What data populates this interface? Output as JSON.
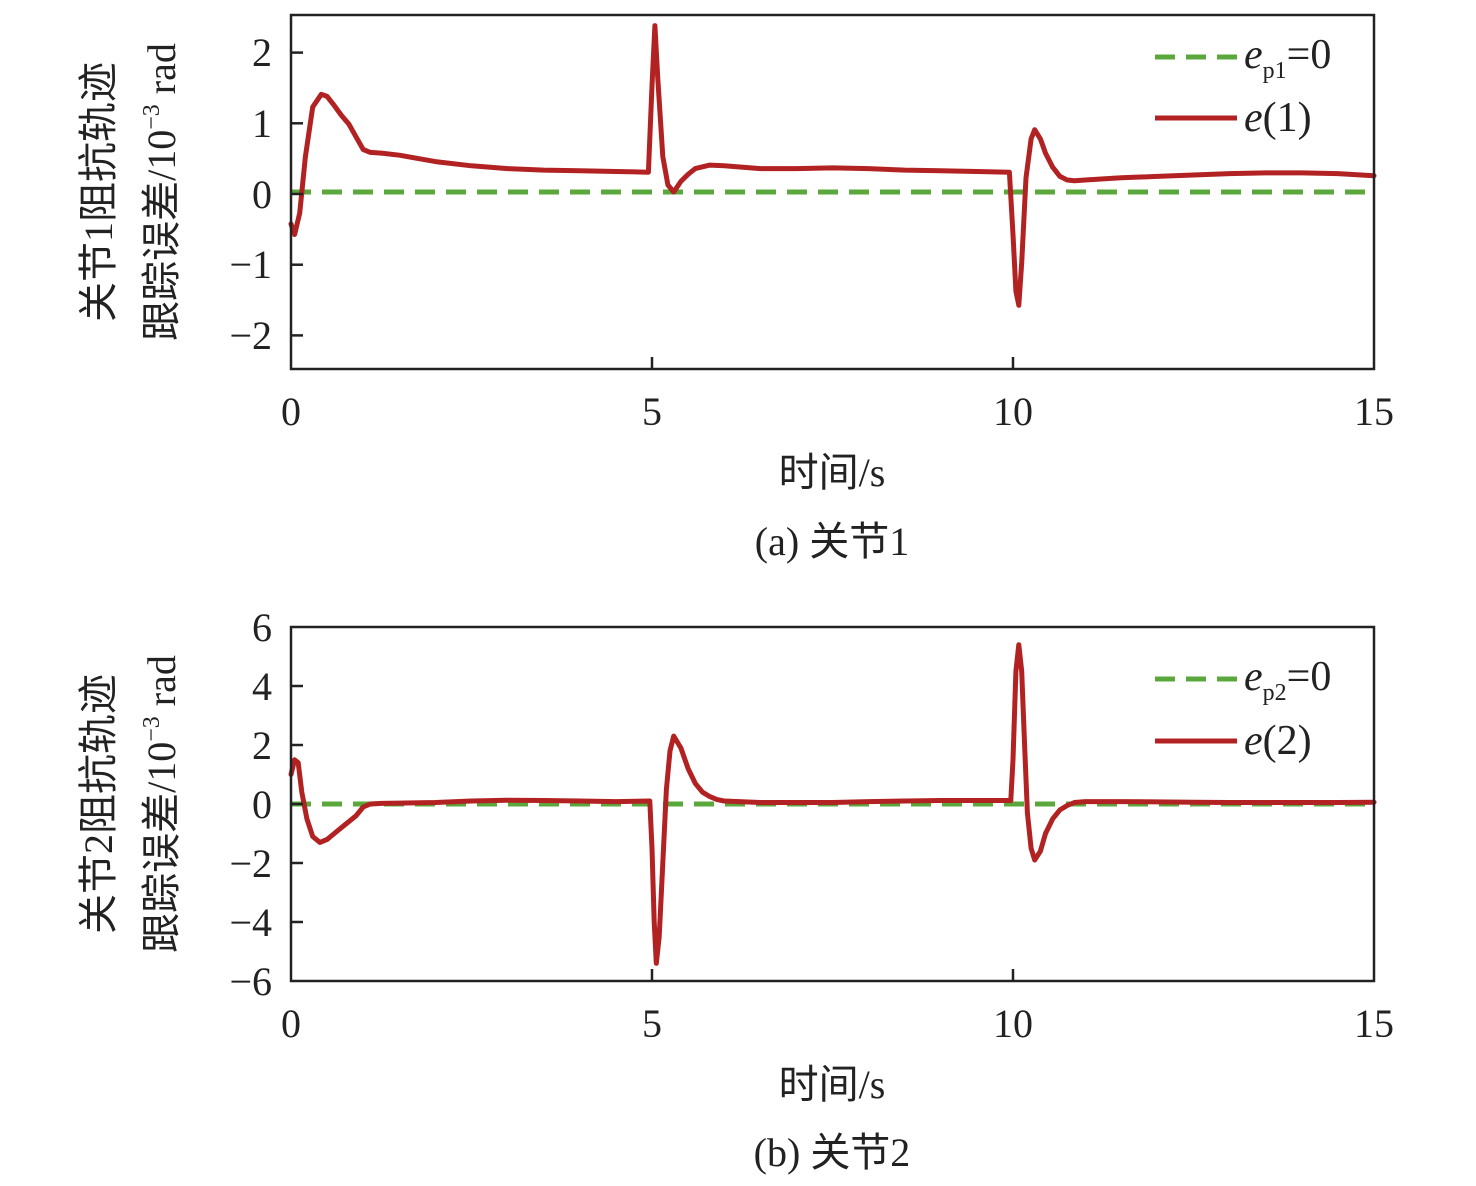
{
  "charts": [
    {
      "caption": "(a) 关节1",
      "xlabel": "时间/s",
      "ylabel_line1": "关节1阻抗轨迹",
      "ylabel_line2": "跟踪误差/10",
      "ylabel_exp": "−3",
      "ylabel_unit": " rad",
      "xticks": [
        "0",
        "5",
        "10",
        "15"
      ],
      "yticks": [
        "2",
        "1",
        "0",
        "−1",
        "−2"
      ],
      "legend": {
        "ref_base": "e",
        "ref_sub": "p1",
        "ref_suffix": "=0",
        "err_base": "e",
        "err_suffix": "(1)"
      }
    },
    {
      "caption": "(b) 关节2",
      "xlabel": "时间/s",
      "ylabel_line1": "关节2阻抗轨迹",
      "ylabel_line2": "跟踪误差/10",
      "ylabel_exp": "−3",
      "ylabel_unit": " rad",
      "xticks": [
        "0",
        "5",
        "10",
        "15"
      ],
      "yticks": [
        "6",
        "4",
        "2",
        "0",
        "−2",
        "−4",
        "−6"
      ],
      "legend": {
        "ref_base": "e",
        "ref_sub": "p2",
        "ref_suffix": "=0",
        "err_base": "e",
        "err_suffix": "(2)"
      }
    }
  ],
  "chart_data": [
    {
      "type": "line",
      "xlabel": "时间/s",
      "ylabel": "关节1阻抗轨迹跟踪误差/10−3 rad",
      "xlim": [
        0,
        15
      ],
      "ylim": [
        -2.5,
        2.5
      ],
      "yticks": [
        2,
        1,
        0,
        -1,
        -2
      ],
      "xticks": [
        0,
        5,
        10,
        15
      ],
      "grid": false,
      "legend_position": "top-right",
      "colors": {
        "reference": "#5aa83c",
        "error": "#b22222"
      },
      "series": [
        {
          "name": "ep1=0",
          "style": "dashed",
          "x": [
            0,
            15
          ],
          "y": [
            0,
            0
          ]
        },
        {
          "name": "e(1)",
          "style": "solid",
          "x": [
            0,
            0.05,
            0.12,
            0.2,
            0.3,
            0.42,
            0.5,
            0.6,
            0.7,
            0.8,
            0.9,
            1.0,
            1.1,
            1.25,
            1.5,
            2.0,
            2.5,
            3.0,
            3.5,
            4.0,
            4.5,
            4.95,
            5.0,
            5.04,
            5.08,
            5.15,
            5.22,
            5.3,
            5.4,
            5.5,
            5.6,
            5.8,
            6.0,
            6.5,
            7.0,
            7.5,
            8.0,
            8.5,
            9.0,
            9.5,
            9.95,
            10.0,
            10.04,
            10.08,
            10.12,
            10.18,
            10.25,
            10.3,
            10.38,
            10.45,
            10.55,
            10.65,
            10.75,
            10.85,
            11.0,
            11.5,
            12.0,
            12.5,
            13.0,
            13.5,
            14.0,
            14.5,
            15.0
          ],
          "y": [
            -0.45,
            -0.6,
            -0.3,
            0.5,
            1.2,
            1.38,
            1.35,
            1.22,
            1.08,
            0.96,
            0.78,
            0.6,
            0.56,
            0.55,
            0.52,
            0.43,
            0.37,
            0.33,
            0.31,
            0.3,
            0.29,
            0.28,
            1.5,
            2.35,
            1.6,
            0.5,
            0.1,
            0.0,
            0.15,
            0.25,
            0.33,
            0.38,
            0.37,
            0.33,
            0.33,
            0.34,
            0.33,
            0.31,
            0.3,
            0.29,
            0.28,
            -0.6,
            -1.4,
            -1.6,
            -1.0,
            0.2,
            0.75,
            0.88,
            0.75,
            0.55,
            0.35,
            0.22,
            0.17,
            0.16,
            0.17,
            0.2,
            0.22,
            0.24,
            0.26,
            0.27,
            0.27,
            0.26,
            0.23
          ]
        }
      ]
    },
    {
      "type": "line",
      "xlabel": "时间/s",
      "ylabel": "关节2阻抗轨迹跟踪误差/10−3 rad",
      "xlim": [
        0,
        15
      ],
      "ylim": [
        -6,
        6
      ],
      "yticks": [
        6,
        4,
        2,
        0,
        -2,
        -4,
        -6
      ],
      "xticks": [
        0,
        5,
        10,
        15
      ],
      "grid": false,
      "legend_position": "top-right",
      "colors": {
        "reference": "#5aa83c",
        "error": "#b22222"
      },
      "series": [
        {
          "name": "ep2=0",
          "style": "dashed",
          "x": [
            0,
            15
          ],
          "y": [
            0,
            0
          ]
        },
        {
          "name": "e(2)",
          "style": "solid",
          "x": [
            0,
            0.05,
            0.1,
            0.15,
            0.22,
            0.3,
            0.4,
            0.5,
            0.6,
            0.7,
            0.8,
            0.9,
            1.0,
            1.1,
            1.25,
            1.5,
            2.0,
            2.5,
            3.0,
            3.5,
            4.0,
            4.5,
            4.97,
            5.0,
            5.03,
            5.06,
            5.1,
            5.15,
            5.2,
            5.25,
            5.3,
            5.4,
            5.5,
            5.6,
            5.7,
            5.8,
            5.9,
            6.0,
            6.5,
            7.0,
            7.5,
            8.0,
            8.5,
            9.0,
            9.5,
            9.97,
            10.0,
            10.04,
            10.08,
            10.12,
            10.16,
            10.2,
            10.25,
            10.3,
            10.38,
            10.45,
            10.55,
            10.65,
            10.75,
            10.85,
            11.0,
            11.5,
            12.0,
            12.5,
            13.0,
            13.5,
            14.0,
            14.5,
            15.0
          ],
          "y": [
            1.0,
            1.5,
            1.4,
            0.4,
            -0.5,
            -1.1,
            -1.3,
            -1.2,
            -1.0,
            -0.8,
            -0.6,
            -0.4,
            -0.1,
            0.0,
            0.02,
            0.03,
            0.05,
            0.1,
            0.13,
            0.12,
            0.1,
            0.08,
            0.1,
            -1.5,
            -4.0,
            -5.4,
            -4.5,
            -2.0,
            0.5,
            1.8,
            2.3,
            1.9,
            1.2,
            0.7,
            0.4,
            0.25,
            0.15,
            0.1,
            0.05,
            0.05,
            0.05,
            0.08,
            0.1,
            0.12,
            0.12,
            0.12,
            1.5,
            4.5,
            5.4,
            4.5,
            2.0,
            -0.3,
            -1.5,
            -1.9,
            -1.6,
            -1.0,
            -0.5,
            -0.2,
            -0.05,
            0.05,
            0.08,
            0.08,
            0.07,
            0.06,
            0.05,
            0.05,
            0.05,
            0.05,
            0.06
          ]
        }
      ]
    }
  ]
}
